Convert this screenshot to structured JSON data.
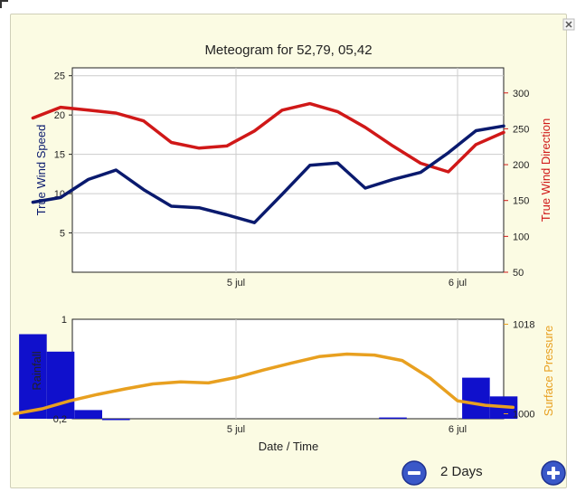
{
  "meteogram": {
    "title": "Meteogram for 52,79, 05,42",
    "x_axis_label": "Date / Time",
    "x_tick_labels": [
      "5 jul",
      "6 jul"
    ],
    "range_label": "2 Days",
    "colors": {
      "panel_bg": "#fbfbe3",
      "wind_speed": "#0a1a6e",
      "wind_direction": "#d01818",
      "rainfall": "#1010cc",
      "pressure": "#e8a020",
      "button_blue": "#3a58c8"
    },
    "icons": {
      "zoom_out": "minus-circle-icon",
      "zoom_in": "plus-circle-icon"
    }
  },
  "chart_data": [
    {
      "type": "line",
      "x": [
        "4 jul 02:00",
        "4 jul 05:00",
        "4 jul 08:00",
        "4 jul 11:00",
        "4 jul 14:00",
        "4 jul 17:00",
        "4 jul 20:00",
        "4 jul 23:00",
        "5 jul 02:00",
        "5 jul 05:00",
        "5 jul 08:00",
        "5 jul 11:00",
        "5 jul 14:00",
        "5 jul 17:00",
        "5 jul 20:00",
        "5 jul 23:00",
        "6 jul 02:00",
        "6 jul 05:00"
      ],
      "series": [
        {
          "name": "True Wind Speed",
          "axis": "left",
          "values": [
            8.9,
            9.5,
            11.8,
            13.0,
            10.5,
            8.4,
            8.2,
            7.3,
            6.3,
            9.9,
            13.6,
            13.9,
            10.7,
            11.8,
            12.7,
            15.2,
            18.0,
            18.6
          ]
        },
        {
          "name": "True Wind Direction",
          "axis": "right",
          "values": [
            265,
            280,
            276,
            272,
            261,
            231,
            223,
            226,
            247,
            276,
            285,
            274,
            252,
            226,
            202,
            190,
            228,
            245
          ]
        }
      ],
      "ylabel_left": "True Wind Speed",
      "ylabel_right": "True Wind Direction",
      "ylim_left": [
        0,
        26
      ],
      "ylim_right": [
        50,
        335
      ],
      "yticks_left": [
        5,
        10,
        15,
        20,
        25
      ],
      "yticks_right": [
        50,
        100,
        150,
        200,
        250,
        300
      ],
      "grid": true
    },
    {
      "type": "bar",
      "x": [
        "4 jul 02:00",
        "4 jul 05:00",
        "4 jul 08:00",
        "4 jul 11:00",
        "5 jul 17:00",
        "6 jul 02:00",
        "6 jul 05:00"
      ],
      "values": [
        0.88,
        0.74,
        0.27,
        0.2,
        0.21,
        0.53,
        0.38
      ],
      "ylabel": "Rainfall",
      "ylim": [
        0.2,
        1
      ],
      "yticks": [
        0.2,
        1
      ],
      "line_series": {
        "name": "Surface Pressure",
        "axis": "right",
        "x": [
          "4 jul 00:00",
          "4 jul 03:00",
          "4 jul 06:00",
          "4 jul 09:00",
          "4 jul 12:00",
          "4 jul 15:00",
          "4 jul 18:00",
          "4 jul 21:00",
          "5 jul 00:00",
          "5 jul 03:00",
          "5 jul 06:00",
          "5 jul 09:00",
          "5 jul 12:00",
          "5 jul 15:00",
          "5 jul 18:00",
          "5 jul 21:00",
          "6 jul 00:00",
          "6 jul 03:00",
          "6 jul 06:00"
        ],
        "values": [
          1000.0,
          1001.0,
          1002.6,
          1003.9,
          1005.0,
          1006.0,
          1006.4,
          1006.2,
          1007.3,
          1008.8,
          1010.2,
          1011.5,
          1012.0,
          1011.8,
          1010.7,
          1007.2,
          1002.6,
          1001.7,
          1001.3
        ]
      },
      "ylabel_right": "Surface Pressure",
      "ylim_right": [
        999,
        1019
      ],
      "yticks_right": [
        1000,
        1018
      ],
      "xlabel": "Date / Time",
      "grid": true
    }
  ]
}
